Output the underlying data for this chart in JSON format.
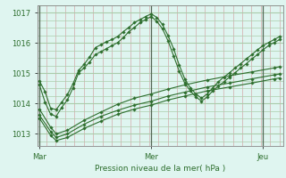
{
  "xlabel": "Pression niveau de la mer( hPa )",
  "bg_color": "#dff5f0",
  "plot_bg_color": "#dff5f0",
  "grid_v_color": "#d4aaaa",
  "grid_h_color": "#aaccaa",
  "line_color": "#2d6e2d",
  "marker": "D",
  "marker_size": 1.8,
  "line_width": 0.8,
  "ylim": [
    1012.6,
    1017.25
  ],
  "yticks": [
    1013,
    1014,
    1015,
    1016,
    1017
  ],
  "day_labels": [
    "Mar",
    "Mer",
    "Jeu"
  ],
  "day_positions": [
    0.0,
    1.0,
    2.0
  ],
  "xlim": [
    -0.02,
    2.18
  ],
  "series": [
    [
      [
        0.0,
        1014.75
      ],
      [
        0.05,
        1014.4
      ],
      [
        0.1,
        1013.85
      ],
      [
        0.15,
        1013.8
      ],
      [
        0.2,
        1014.05
      ],
      [
        0.25,
        1014.3
      ],
      [
        0.3,
        1014.65
      ],
      [
        0.35,
        1015.1
      ],
      [
        0.4,
        1015.3
      ],
      [
        0.45,
        1015.55
      ],
      [
        0.5,
        1015.85
      ],
      [
        0.55,
        1015.95
      ],
      [
        0.6,
        1016.05
      ],
      [
        0.65,
        1016.12
      ],
      [
        0.7,
        1016.22
      ],
      [
        0.75,
        1016.38
      ],
      [
        0.8,
        1016.52
      ],
      [
        0.85,
        1016.68
      ],
      [
        0.9,
        1016.78
      ],
      [
        0.95,
        1016.88
      ],
      [
        1.0,
        1016.97
      ],
      [
        1.05,
        1016.85
      ],
      [
        1.1,
        1016.62
      ],
      [
        1.15,
        1016.25
      ],
      [
        1.2,
        1015.82
      ],
      [
        1.25,
        1015.28
      ],
      [
        1.3,
        1014.82
      ],
      [
        1.35,
        1014.52
      ],
      [
        1.4,
        1014.32
      ],
      [
        1.45,
        1014.18
      ],
      [
        1.5,
        1014.32
      ],
      [
        1.55,
        1014.52
      ],
      [
        1.6,
        1014.72
      ],
      [
        1.65,
        1014.88
      ],
      [
        1.7,
        1015.02
      ],
      [
        1.75,
        1015.18
      ],
      [
        1.8,
        1015.32
      ],
      [
        1.85,
        1015.48
      ],
      [
        1.9,
        1015.62
      ],
      [
        1.95,
        1015.78
      ],
      [
        2.0,
        1015.92
      ],
      [
        2.05,
        1016.02
      ],
      [
        2.1,
        1016.12
      ],
      [
        2.15,
        1016.22
      ]
    ],
    [
      [
        0.0,
        1014.62
      ],
      [
        0.05,
        1014.05
      ],
      [
        0.1,
        1013.65
      ],
      [
        0.15,
        1013.58
      ],
      [
        0.2,
        1013.88
      ],
      [
        0.25,
        1014.12
      ],
      [
        0.3,
        1014.52
      ],
      [
        0.35,
        1015.02
      ],
      [
        0.4,
        1015.18
      ],
      [
        0.45,
        1015.38
      ],
      [
        0.5,
        1015.62
      ],
      [
        0.55,
        1015.72
      ],
      [
        0.6,
        1015.82
      ],
      [
        0.65,
        1015.92
      ],
      [
        0.7,
        1016.02
      ],
      [
        0.75,
        1016.18
      ],
      [
        0.8,
        1016.38
      ],
      [
        0.85,
        1016.52
      ],
      [
        0.9,
        1016.68
      ],
      [
        0.95,
        1016.78
      ],
      [
        1.0,
        1016.88
      ],
      [
        1.05,
        1016.72
      ],
      [
        1.1,
        1016.48
      ],
      [
        1.15,
        1016.08
      ],
      [
        1.2,
        1015.58
      ],
      [
        1.25,
        1015.08
      ],
      [
        1.3,
        1014.68
      ],
      [
        1.35,
        1014.42
      ],
      [
        1.4,
        1014.22
      ],
      [
        1.45,
        1014.08
      ],
      [
        1.5,
        1014.22
      ],
      [
        1.55,
        1014.42
      ],
      [
        1.6,
        1014.58
      ],
      [
        1.65,
        1014.72
      ],
      [
        1.7,
        1014.88
      ],
      [
        1.75,
        1015.02
      ],
      [
        1.8,
        1015.18
      ],
      [
        1.85,
        1015.32
      ],
      [
        1.9,
        1015.48
      ],
      [
        1.95,
        1015.62
      ],
      [
        2.0,
        1015.78
      ],
      [
        2.05,
        1015.92
      ],
      [
        2.1,
        1016.02
      ],
      [
        2.15,
        1016.12
      ]
    ],
    [
      [
        0.0,
        1013.82
      ],
      [
        0.1,
        1013.22
      ],
      [
        0.15,
        1013.0
      ],
      [
        0.25,
        1013.12
      ],
      [
        0.4,
        1013.45
      ],
      [
        0.55,
        1013.72
      ],
      [
        0.7,
        1013.98
      ],
      [
        0.85,
        1014.18
      ],
      [
        1.0,
        1014.32
      ],
      [
        1.15,
        1014.48
      ],
      [
        1.3,
        1014.62
      ],
      [
        1.5,
        1014.78
      ],
      [
        1.7,
        1014.92
      ],
      [
        1.9,
        1015.05
      ],
      [
        2.1,
        1015.18
      ],
      [
        2.15,
        1015.22
      ]
    ],
    [
      [
        0.0,
        1013.62
      ],
      [
        0.1,
        1013.08
      ],
      [
        0.15,
        1012.88
      ],
      [
        0.25,
        1013.0
      ],
      [
        0.4,
        1013.32
      ],
      [
        0.55,
        1013.58
      ],
      [
        0.7,
        1013.78
      ],
      [
        0.85,
        1013.95
      ],
      [
        1.0,
        1014.08
      ],
      [
        1.15,
        1014.25
      ],
      [
        1.3,
        1014.38
      ],
      [
        1.5,
        1014.55
      ],
      [
        1.7,
        1014.68
      ],
      [
        1.9,
        1014.82
      ],
      [
        2.1,
        1014.95
      ],
      [
        2.15,
        1014.98
      ]
    ],
    [
      [
        0.0,
        1013.52
      ],
      [
        0.1,
        1012.95
      ],
      [
        0.15,
        1012.78
      ],
      [
        0.25,
        1012.88
      ],
      [
        0.4,
        1013.18
      ],
      [
        0.55,
        1013.42
      ],
      [
        0.7,
        1013.65
      ],
      [
        0.85,
        1013.82
      ],
      [
        1.0,
        1013.95
      ],
      [
        1.15,
        1014.12
      ],
      [
        1.3,
        1014.25
      ],
      [
        1.5,
        1014.42
      ],
      [
        1.7,
        1014.55
      ],
      [
        1.9,
        1014.68
      ],
      [
        2.1,
        1014.82
      ],
      [
        2.15,
        1014.85
      ]
    ]
  ]
}
